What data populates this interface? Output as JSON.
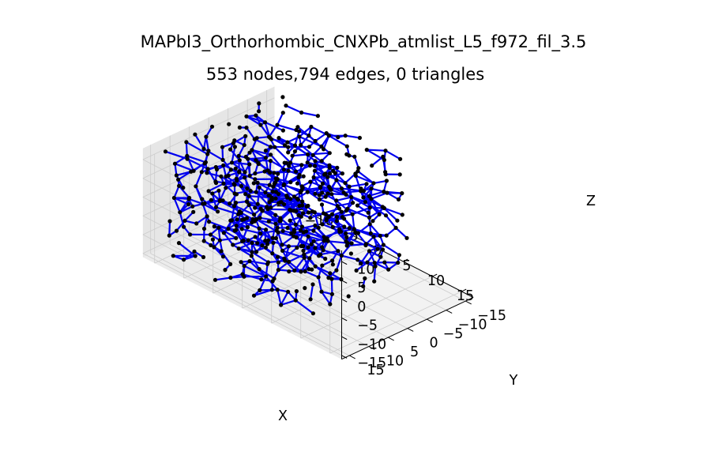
{
  "chart_data": {
    "type": "network-3d",
    "title": "MAPbI3_Orthorhombic_CNXPb_atmlist_L5_f972_fil_3.5",
    "subtitle": "553 nodes,794 edges, 0 triangles",
    "node_count": 553,
    "edge_count": 794,
    "triangle_count": 0,
    "xlabel": "X",
    "ylabel": "Y",
    "zlabel": "Z",
    "xlim": [
      -17,
      17
    ],
    "ylim": [
      -17,
      17
    ],
    "zlim": [
      -16,
      13
    ],
    "x_ticks": [
      -15,
      -10,
      -5,
      0,
      5,
      10,
      15
    ],
    "x_tick_labels": [
      "−15",
      "−10",
      "−5",
      "0",
      "5",
      "10",
      "15"
    ],
    "y_ticks": [
      -15,
      -10,
      -5,
      0,
      5,
      10,
      15
    ],
    "y_tick_labels": [
      "−15",
      "−10",
      "−5",
      "0",
      "5",
      "10",
      "15"
    ],
    "z_ticks": [
      -15,
      -10,
      -5,
      0,
      5,
      10
    ],
    "z_tick_labels": [
      "−15",
      "−10",
      "−5",
      "0",
      "5",
      "10"
    ],
    "grid": true,
    "node_color": "#000000",
    "edge_color": "#0000ee",
    "pane_color": "#f2f2f2",
    "grid_color": "#cccccc"
  }
}
